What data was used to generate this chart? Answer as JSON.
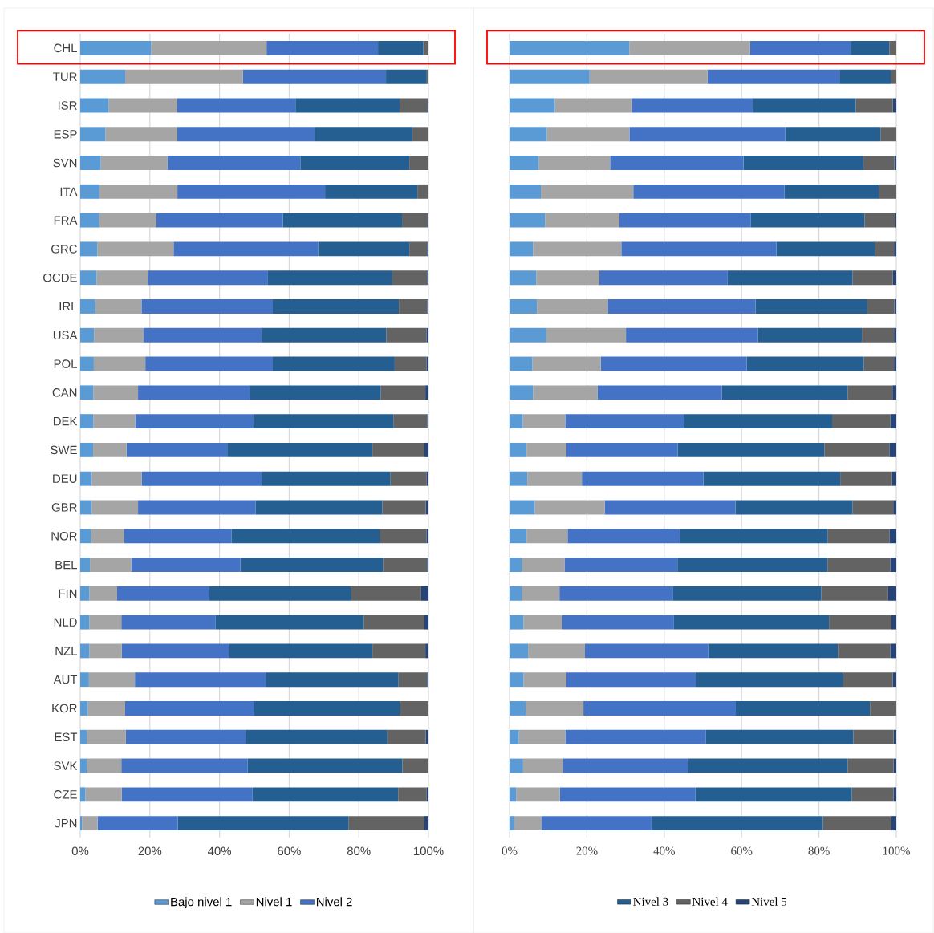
{
  "chart_data": [
    {
      "type": "bar",
      "orientation": "horizontal",
      "stacked": true,
      "grid": "x",
      "legend": "bottom",
      "xlim": [
        0,
        100
      ],
      "xticks": [
        {
          "value": 0,
          "label": "0%"
        },
        {
          "value": 20,
          "label": "20%"
        },
        {
          "value": 40,
          "label": "40%"
        },
        {
          "value": 60,
          "label": "60%"
        },
        {
          "value": 80,
          "label": "80%"
        },
        {
          "value": 100,
          "label": "100%"
        }
      ],
      "categories": [
        "CHL",
        "TUR",
        "ISR",
        "ESP",
        "SVN",
        "ITA",
        "FRA",
        "GRC",
        "OCDE",
        "IRL",
        "USA",
        "POL",
        "CAN",
        "DEK",
        "SWE",
        "DEU",
        "GBR",
        "NOR",
        "BEL",
        "FIN",
        "NLD",
        "NZL",
        "AUT",
        "KOR",
        "EST",
        "SVK",
        "CZE",
        "JPN"
      ],
      "series": [
        {
          "name": "Bajo nivel 1",
          "color": "#5b9bd5",
          "values": [
            20.4,
            12.9,
            8.1,
            7.2,
            5.9,
            5.5,
            5.4,
            4.9,
            4.7,
            4.3,
            4.0,
            3.9,
            3.8,
            3.8,
            3.7,
            3.3,
            3.3,
            3.1,
            2.8,
            2.6,
            2.6,
            2.6,
            2.5,
            2.2,
            1.9,
            1.9,
            1.5,
            0.5
          ]
        },
        {
          "name": "Nivel 1",
          "color": "#a5a5a5",
          "values": [
            33.1,
            33.8,
            19.7,
            20.6,
            19.2,
            22.4,
            16.4,
            21.9,
            14.7,
            13.3,
            14.2,
            14.8,
            12.8,
            12.0,
            9.6,
            14.4,
            13.3,
            9.5,
            11.9,
            8.0,
            9.2,
            9.3,
            13.2,
            10.7,
            11.2,
            9.9,
            10.4,
            4.5
          ]
        },
        {
          "name": "Nivel 2",
          "color": "#4472c4",
          "values": [
            32.0,
            41.1,
            34.0,
            39.5,
            38.1,
            42.4,
            36.4,
            41.5,
            34.5,
            37.7,
            34.0,
            36.6,
            32.2,
            34.1,
            28.9,
            34.5,
            33.8,
            30.9,
            31.3,
            26.5,
            27.1,
            30.9,
            37.7,
            37.1,
            34.4,
            36.3,
            37.6,
            23.0
          ]
        },
        {
          "color": "#255e91",
          "values": [
            13.0,
            11.7,
            29.9,
            28.1,
            31.3,
            26.5,
            34.2,
            26.2,
            35.7,
            36.2,
            35.7,
            35.0,
            37.5,
            40.0,
            41.7,
            36.9,
            36.3,
            42.5,
            41.0,
            40.7,
            42.5,
            41.1,
            38.0,
            41.8,
            40.7,
            44.4,
            41.8,
            49.0
          ]
        },
        {
          "color": "#636363",
          "values": [
            1.5,
            0.5,
            8.1,
            4.6,
            5.5,
            3.2,
            7.4,
            5.1,
            10.0,
            8.2,
            11.5,
            9.1,
            12.8,
            9.8,
            14.9,
            10.4,
            12.5,
            13.4,
            12.6,
            20.1,
            17.4,
            15.2,
            8.2,
            8.2,
            11.0,
            7.5,
            8.2,
            21.8
          ]
        },
        {
          "color": "#264478",
          "values": [
            0,
            0,
            0.2,
            0,
            0,
            0,
            0.2,
            0.4,
            0.4,
            0.3,
            0.6,
            0.6,
            0.9,
            0.3,
            1.2,
            0.5,
            0.8,
            0.6,
            0.4,
            2.1,
            1.2,
            0.9,
            0.4,
            0,
            0.8,
            0,
            0.5,
            1.2
          ]
        }
      ]
    },
    {
      "type": "bar",
      "orientation": "horizontal",
      "stacked": true,
      "grid": "x",
      "legend": "bottom",
      "xlim": [
        0,
        100
      ],
      "xticks": [
        {
          "value": 0,
          "label": "0%"
        },
        {
          "value": 20,
          "label": "20%"
        },
        {
          "value": 40,
          "label": "40%"
        },
        {
          "value": 60,
          "label": "60%"
        },
        {
          "value": 80,
          "label": "80%"
        },
        {
          "value": 100,
          "label": "100%"
        }
      ],
      "categories": [
        null,
        null,
        null,
        null,
        null,
        null,
        null,
        null,
        null,
        null,
        null,
        null,
        null,
        null,
        null,
        null,
        null,
        null,
        null,
        null,
        null,
        null,
        null,
        null,
        null,
        null,
        null,
        null
      ],
      "series": [
        {
          "color": "#5b9bd5",
          "values": [
            31.0,
            20.7,
            11.7,
            9.6,
            7.5,
            8.1,
            9.2,
            6.1,
            6.9,
            7.1,
            9.5,
            5.9,
            6.1,
            3.4,
            4.4,
            4.6,
            6.5,
            4.4,
            3.2,
            3.2,
            3.6,
            4.8,
            3.6,
            4.2,
            2.4,
            3.5,
            1.7,
            1.2
          ]
        },
        {
          "color": "#a5a5a5",
          "values": [
            31.2,
            30.5,
            20.0,
            21.4,
            18.5,
            23.9,
            19.2,
            22.8,
            16.3,
            18.3,
            20.6,
            17.7,
            16.7,
            11.0,
            10.3,
            14.1,
            18.1,
            10.6,
            11.0,
            9.7,
            10.0,
            14.7,
            11.1,
            14.9,
            12.1,
            10.4,
            11.3,
            7.1
          ]
        },
        {
          "color": "#4472c4",
          "values": [
            26.0,
            34.1,
            31.2,
            40.3,
            34.5,
            39.1,
            34.0,
            40.1,
            33.2,
            38.2,
            34.1,
            37.7,
            32.1,
            30.8,
            28.8,
            31.4,
            33.8,
            29.1,
            29.2,
            29.4,
            28.9,
            31.9,
            33.6,
            39.4,
            36.2,
            32.3,
            35.0,
            28.4
          ]
        },
        {
          "name": "Nivel 3",
          "color": "#255e91",
          "values": [
            10.0,
            13.3,
            26.6,
            24.6,
            31.0,
            24.4,
            29.4,
            25.5,
            32.3,
            28.9,
            26.9,
            30.3,
            32.5,
            38.2,
            37.9,
            35.4,
            30.3,
            38.2,
            38.8,
            38.3,
            40.1,
            33.5,
            37.9,
            34.7,
            38.2,
            41.2,
            40.5,
            44.3
          ]
        },
        {
          "name": "Nivel 4",
          "color": "#636363",
          "values": [
            1.8,
            1.4,
            9.6,
            4.1,
            8.0,
            4.5,
            7.9,
            4.9,
            10.4,
            7.0,
            8.3,
            7.8,
            11.6,
            15.1,
            16.9,
            13.4,
            10.5,
            16.0,
            16.3,
            17.3,
            16.1,
            13.6,
            12.9,
            6.8,
            10.4,
            11.9,
            10.8,
            17.7
          ]
        },
        {
          "name": "Nivel 5",
          "color": "#264478",
          "values": [
            0,
            0,
            0.9,
            0,
            0.5,
            0,
            0.3,
            0.6,
            0.9,
            0.5,
            0.6,
            0.6,
            1.0,
            1.5,
            1.7,
            1.1,
            0.8,
            1.7,
            1.5,
            2.1,
            1.3,
            1.5,
            0.9,
            0,
            0.7,
            0.7,
            0.7,
            1.3
          ]
        }
      ]
    }
  ]
}
